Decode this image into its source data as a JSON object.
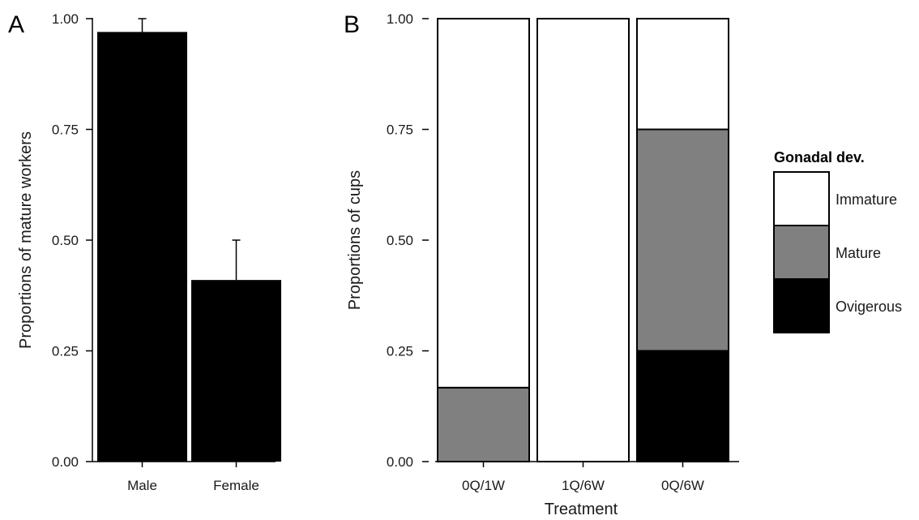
{
  "chart_data": [
    {
      "panel": "A",
      "type": "bar",
      "ylabel": "Proportions of mature workers",
      "xlabel": "",
      "ylim": [
        0,
        1
      ],
      "yticks": [
        "0.00",
        "0.25",
        "0.50",
        "0.75",
        "1.00"
      ],
      "categories": [
        "Male",
        "Female"
      ],
      "values": [
        0.97,
        0.41
      ],
      "error_upper": [
        1.0,
        0.5
      ],
      "bar_color": "#000000"
    },
    {
      "panel": "B",
      "type": "bar",
      "stacked": true,
      "ylabel": "Proportions of cups",
      "xlabel": "Treatment",
      "ylim": [
        0,
        1
      ],
      "yticks": [
        "0.00",
        "0.25",
        "0.50",
        "0.75",
        "1.00"
      ],
      "categories": [
        "0Q/1W",
        "1Q/6W",
        "0Q/6W"
      ],
      "series": [
        {
          "name": "Ovigerous",
          "color": "#000000",
          "values": [
            0,
            0,
            0.25
          ]
        },
        {
          "name": "Mature",
          "color": "#808080",
          "values": [
            0.167,
            0,
            0.5
          ]
        },
        {
          "name": "Immature",
          "color": "#ffffff",
          "values": [
            0.833,
            1,
            0.25
          ]
        }
      ],
      "legend": {
        "title": "Gonadal dev.",
        "placement": "right",
        "entries": [
          "Immature",
          "Mature",
          "Ovigerous"
        ]
      }
    }
  ]
}
